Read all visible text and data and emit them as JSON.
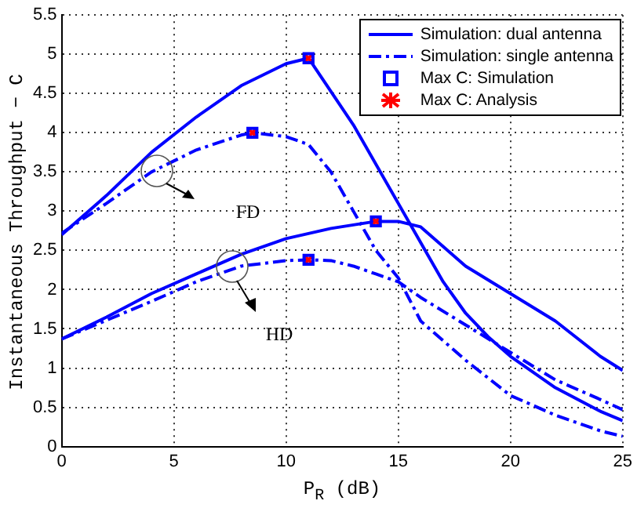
{
  "chart_data": {
    "type": "line",
    "xlabel": "P$_{R}$ (dB)",
    "ylabel": "Instantaneous Throughput − C",
    "xlim": [
      0,
      25
    ],
    "xticks": [
      0,
      5,
      10,
      15,
      20,
      25
    ],
    "ylim": [
      0,
      5.5
    ],
    "yticks": [
      0,
      0.5,
      1,
      1.5,
      2,
      2.5,
      3,
      3.5,
      4,
      4.5,
      5,
      5.5
    ],
    "grid": true,
    "legend": "top right",
    "series": [
      {
        "name": "Simulation: dual antenna",
        "color": "#0000ff",
        "line_style": "solid",
        "marker": "none",
        "x": [
          0,
          2,
          4,
          6,
          8,
          10,
          11,
          13,
          15,
          16,
          17,
          18,
          19,
          20,
          22,
          24,
          25
        ],
        "values": [
          2.7,
          3.2,
          3.75,
          4.2,
          4.6,
          4.88,
          4.95,
          4.1,
          3.1,
          2.6,
          2.1,
          1.7,
          1.4,
          1.15,
          0.75,
          0.45,
          0.33
        ]
      },
      {
        "name": "Simulation: single antenna",
        "color": "#0000ff",
        "line_style": "dashed",
        "marker": "none",
        "x": [
          0,
          2,
          4,
          6,
          8,
          8.5,
          10,
          11,
          12,
          13,
          14,
          15,
          16,
          18,
          20,
          22,
          24,
          25
        ],
        "values": [
          2.72,
          3.1,
          3.5,
          3.78,
          3.97,
          4.0,
          3.95,
          3.85,
          3.5,
          3.0,
          2.5,
          2.15,
          1.6,
          1.1,
          0.65,
          0.4,
          0.2,
          0.13
        ]
      },
      {
        "color": "#0000ff",
        "line_style": "solid",
        "marker": "none",
        "x": [
          0,
          2,
          4,
          6,
          8,
          10,
          12,
          14,
          15,
          16,
          17,
          18,
          20,
          22,
          24,
          25
        ],
        "values": [
          1.37,
          1.65,
          1.95,
          2.2,
          2.45,
          2.65,
          2.78,
          2.87,
          2.87,
          2.8,
          2.55,
          2.3,
          1.95,
          1.6,
          1.15,
          0.97
        ]
      },
      {
        "color": "#0000ff",
        "line_style": "dashed",
        "marker": "none",
        "x": [
          0,
          4,
          6,
          8,
          10,
          11,
          12,
          13,
          14,
          15,
          16,
          18,
          20,
          22,
          24,
          25
        ],
        "values": [
          1.37,
          1.85,
          2.1,
          2.3,
          2.37,
          2.38,
          2.37,
          2.3,
          2.2,
          2.1,
          1.9,
          1.55,
          1.2,
          0.85,
          0.6,
          0.47
        ]
      },
      {
        "name": "Max C: Simulation",
        "type": "scatter",
        "color": "#0000ff",
        "marker": "square",
        "x": [
          11,
          8.5,
          14,
          11
        ],
        "values": [
          4.95,
          4.0,
          2.87,
          2.38
        ]
      },
      {
        "name": "Max C: Analysis",
        "type": "scatter",
        "color": "#ff0000",
        "marker": "cross",
        "x": [
          11,
          8.5,
          14,
          11
        ],
        "values": [
          4.95,
          4.0,
          2.87,
          2.38
        ]
      }
    ],
    "annotations": [
      "FD",
      "HD"
    ]
  }
}
